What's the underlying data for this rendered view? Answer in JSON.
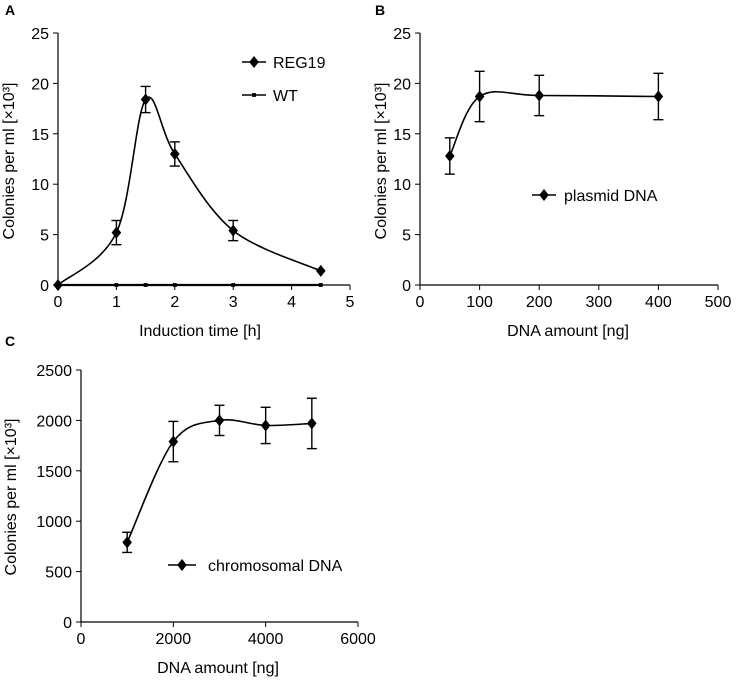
{
  "chart_data": [
    {
      "panel": "A",
      "type": "line",
      "xlabel": "Induction time [h]",
      "ylabel": "Colonies per ml [×10³]",
      "xlim": [
        0,
        5
      ],
      "ylim": [
        0,
        25
      ],
      "xticks": [
        "0",
        "1",
        "2",
        "3",
        "4",
        "5"
      ],
      "yticks": [
        "0",
        "5",
        "10",
        "15",
        "20",
        "25"
      ],
      "legend_position": "top-right",
      "series": [
        {
          "name": "REG19",
          "marker": "diamond",
          "smooth": true,
          "x": [
            0,
            1,
            1.5,
            2,
            3,
            4.5
          ],
          "values": [
            0,
            5.2,
            18.4,
            13.0,
            5.4,
            1.4
          ],
          "errors": [
            0,
            1.2,
            1.3,
            1.2,
            1.0,
            0
          ]
        },
        {
          "name": "WT",
          "marker": "square",
          "smooth": false,
          "x": [
            0,
            1,
            1.5,
            2,
            3,
            4.5
          ],
          "values": [
            0,
            0,
            0,
            0,
            0,
            0
          ],
          "errors": [
            0,
            0,
            0,
            0,
            0,
            0
          ]
        }
      ]
    },
    {
      "panel": "B",
      "type": "line",
      "xlabel": "DNA amount [ng]",
      "ylabel": "Colonies per ml [×10³]",
      "xlim": [
        0,
        500
      ],
      "ylim": [
        0,
        25
      ],
      "xticks": [
        "0",
        "100",
        "200",
        "300",
        "400",
        "500"
      ],
      "yticks": [
        "0",
        "5",
        "10",
        "15",
        "20",
        "25"
      ],
      "legend_position": "middle-right",
      "series": [
        {
          "name": "plasmid DNA",
          "marker": "diamond",
          "smooth": true,
          "x": [
            50,
            100,
            200,
            400
          ],
          "values": [
            12.8,
            18.7,
            18.8,
            18.7
          ],
          "errors": [
            1.8,
            2.5,
            2.0,
            2.3
          ]
        }
      ]
    },
    {
      "panel": "C",
      "type": "line",
      "xlabel": "DNA amount [ng]",
      "ylabel": "Colonies per ml [×10³]",
      "xlim": [
        0,
        6000
      ],
      "ylim": [
        0,
        2500
      ],
      "xticks": [
        "0",
        "2000",
        "4000",
        "6000"
      ],
      "yticks": [
        "0",
        "500",
        "1000",
        "1500",
        "2000",
        "2500"
      ],
      "legend_position": "middle-right",
      "series": [
        {
          "name": "chromosomal DNA",
          "marker": "diamond",
          "smooth": true,
          "x": [
            1000,
            2000,
            3000,
            4000,
            5000
          ],
          "values": [
            790,
            1790,
            2000,
            1950,
            1970
          ],
          "errors": [
            100,
            200,
            150,
            180,
            250
          ]
        }
      ]
    }
  ]
}
